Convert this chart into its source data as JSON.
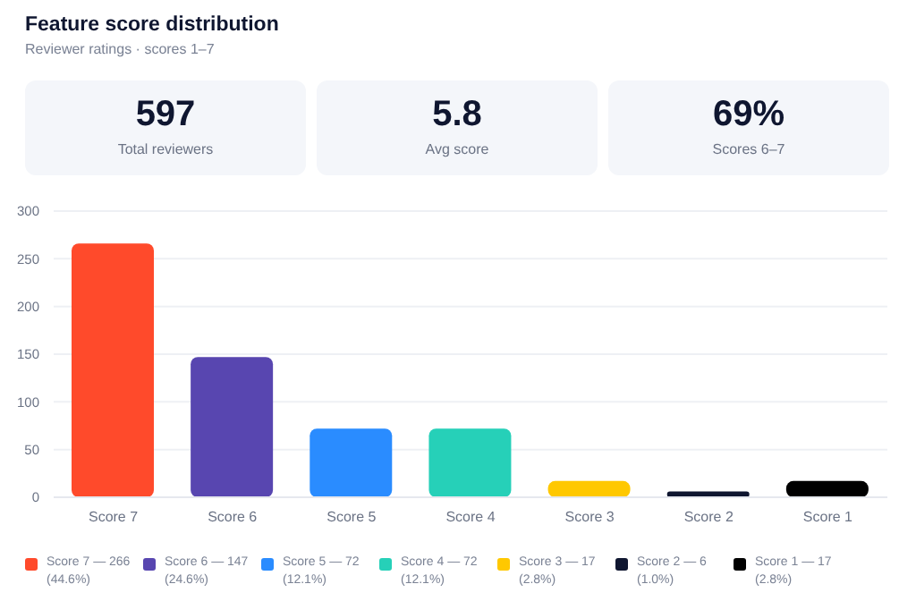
{
  "chart_data": {
    "type": "bar",
    "title": "Feature score distribution",
    "subtitle": "Reviewer ratings · scores 1–7",
    "annotations": [
      "597",
      "Total reviewers",
      "5.8",
      "Avg score",
      "69%",
      "Scores 6–7"
    ],
    "categories": [
      "Score 7",
      "Score 6",
      "Score 5",
      "Score 4",
      "Score 3",
      "Score 2",
      "Score 1"
    ],
    "stacked": true,
    "series": [
      {
        "name": "Score 7 — 266 (44.6%)",
        "color": "#ff4a2b",
        "values": [
          266,
          null,
          null,
          null,
          null,
          null,
          null
        ]
      },
      {
        "name": "Score 6 — 147 (24.6%)",
        "color": "#5846b0",
        "values": [
          null,
          147,
          null,
          null,
          null,
          null,
          null
        ]
      },
      {
        "name": "Score 5 — 72 (12.1%)",
        "color": "#2a8cff",
        "values": [
          null,
          null,
          72,
          null,
          null,
          null,
          null
        ]
      },
      {
        "name": "Score 4 — 72 (12.1%)",
        "color": "#26d0b8",
        "values": [
          null,
          null,
          null,
          72,
          null,
          null,
          null
        ]
      },
      {
        "name": "Score 3 — 17 (2.8%)",
        "color": "#ffc800",
        "values": [
          null,
          null,
          null,
          null,
          17,
          null,
          null
        ]
      },
      {
        "name": "Score 2 — 6 (1.0%)",
        "color": "#0f1630",
        "values": [
          null,
          null,
          null,
          null,
          null,
          6,
          null
        ]
      },
      {
        "name": "Score 1 — 17 (2.8%)",
        "color": "#000000",
        "values": [
          null,
          null,
          null,
          null,
          null,
          null,
          17
        ]
      }
    ],
    "ylim": [
      0,
      300
    ],
    "yticks": [
      0,
      50,
      100,
      150,
      200,
      250,
      300
    ],
    "grid": "y",
    "legend": "bottom"
  }
}
